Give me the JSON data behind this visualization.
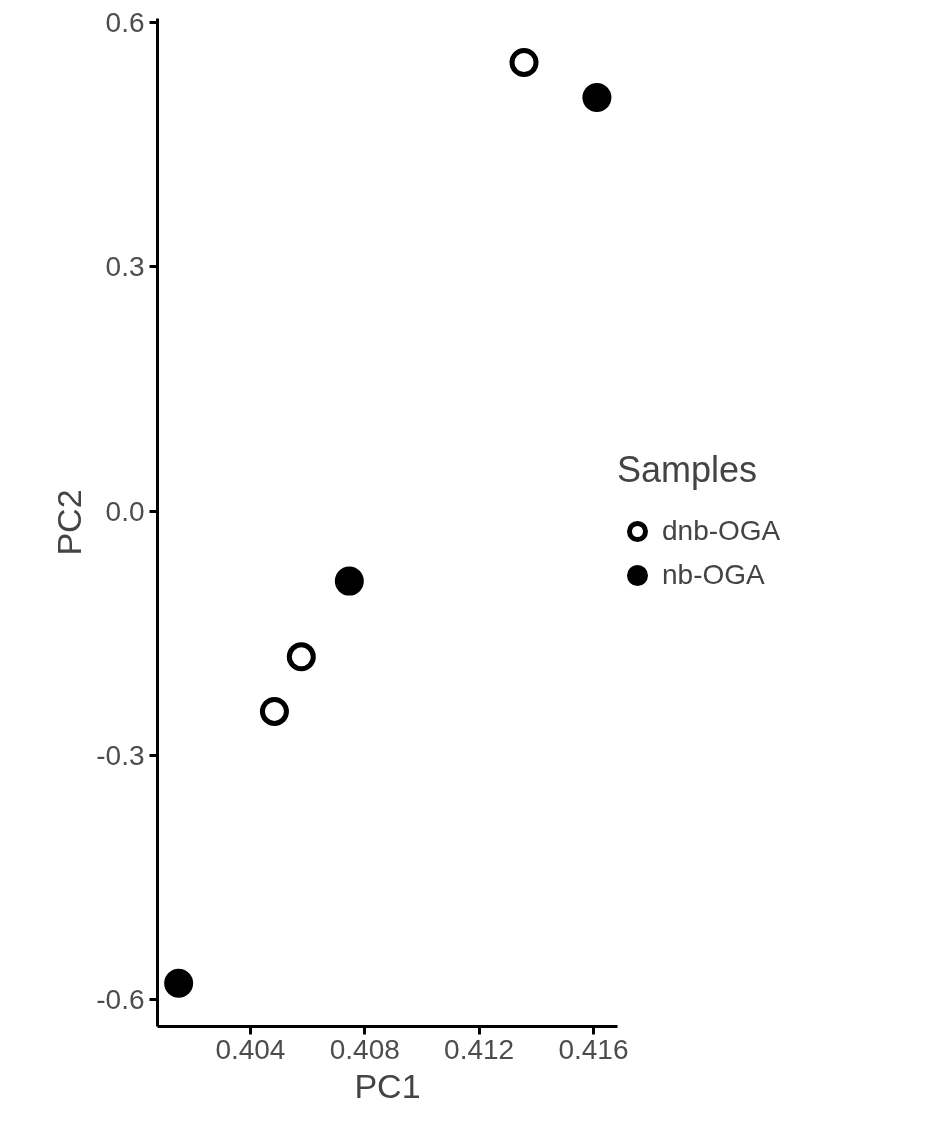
{
  "chart_data": {
    "type": "scatter",
    "xlabel": "PC1",
    "ylabel": "PC2",
    "legend_title": "Samples",
    "legend": "right",
    "grid": false,
    "marker": "circle",
    "xlim": [
      0.40075,
      0.41684
    ],
    "xticks": [
      0.404,
      0.408,
      0.412,
      0.416
    ],
    "ylim": [
      -0.633,
      0.605
    ],
    "yticks": [
      {
        "value": -0.6,
        "label": "-0.6"
      },
      {
        "value": -0.3,
        "label": "-0.3"
      },
      {
        "value": 0.0,
        "label": "0.0"
      },
      {
        "value": 0.3,
        "label": "0.3"
      },
      {
        "value": 0.6,
        "label": "0.6"
      }
    ],
    "series": [
      {
        "name": "dnb-OGA",
        "color": "#ffffff",
        "x": [
          0.41357,
          0.40578,
          0.40484
        ],
        "values": [
          0.551,
          -0.179,
          -0.246
        ]
      },
      {
        "name": "nb-OGA",
        "color": "#000000",
        "x": [
          0.41612,
          0.40746,
          0.40149
        ],
        "values": [
          0.508,
          -0.086,
          -0.58
        ]
      }
    ]
  }
}
